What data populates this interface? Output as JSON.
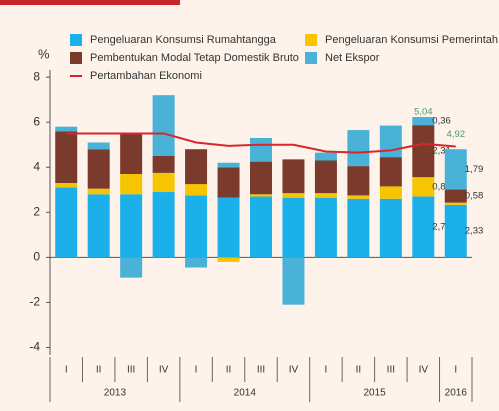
{
  "chart_data": {
    "type": "stacked-bar-line",
    "y_label": "%",
    "categories": [
      "I",
      "II",
      "III",
      "IV",
      "I",
      "II",
      "III",
      "IV",
      "I",
      "II",
      "III",
      "IV",
      "I"
    ],
    "years": [
      "2013",
      "2014",
      "2015",
      "2016"
    ],
    "ylim": [
      -5,
      8.45
    ],
    "yticks": [
      -4,
      -2,
      0,
      2,
      4,
      6,
      8
    ],
    "series": [
      {
        "name": "Pengeluaran Konsumsi Rumahtangga",
        "color": "#1bb0ea",
        "values": [
          3.1,
          2.8,
          2.8,
          2.9,
          2.75,
          2.65,
          2.7,
          2.65,
          2.65,
          2.6,
          2.6,
          2.7,
          2.33
        ],
        "value_labels": [
          null,
          null,
          null,
          null,
          null,
          null,
          null,
          null,
          null,
          null,
          null,
          "2,70",
          "2,33"
        ]
      },
      {
        "name": "Pengeluaran Konsumsi Pemerintah",
        "color": "#f7c400",
        "values": [
          0.2,
          0.25,
          0.9,
          0.85,
          0.5,
          -0.2,
          0.1,
          0.2,
          0.2,
          0.15,
          0.55,
          0.86,
          0.1
        ],
        "value_labels": [
          null,
          null,
          null,
          null,
          null,
          null,
          null,
          null,
          null,
          null,
          null,
          "0,86",
          null
        ]
      },
      {
        "name": "Pembentukan Modal Tetap Domestik Bruto",
        "color": "#7a3b2c",
        "values": [
          2.3,
          1.75,
          1.8,
          0.75,
          1.55,
          1.35,
          1.45,
          1.5,
          1.45,
          1.3,
          1.3,
          2.31,
          0.58
        ],
        "value_labels": [
          null,
          null,
          null,
          null,
          null,
          null,
          null,
          null,
          null,
          null,
          null,
          "2,31",
          "0,58"
        ]
      },
      {
        "name": "Net Ekspor",
        "color": "#4ab2d6",
        "values": [
          0.2,
          0.3,
          -0.9,
          2.7,
          -0.45,
          0.2,
          1.05,
          -2.1,
          0.35,
          1.6,
          1.4,
          0.36,
          1.79
        ],
        "value_labels": [
          null,
          null,
          null,
          null,
          null,
          null,
          null,
          null,
          null,
          null,
          null,
          "0,36",
          "1,79"
        ]
      }
    ],
    "line": {
      "name": "Pertambahan Ekonomi",
      "color": "#d8262e",
      "values": [
        5.5,
        5.5,
        5.5,
        5.5,
        5.1,
        4.95,
        5.0,
        5.0,
        4.7,
        4.65,
        4.75,
        5.04,
        4.92
      ],
      "value_labels": [
        null,
        null,
        null,
        null,
        null,
        null,
        null,
        null,
        null,
        null,
        null,
        "5,04",
        "4,92"
      ]
    }
  }
}
